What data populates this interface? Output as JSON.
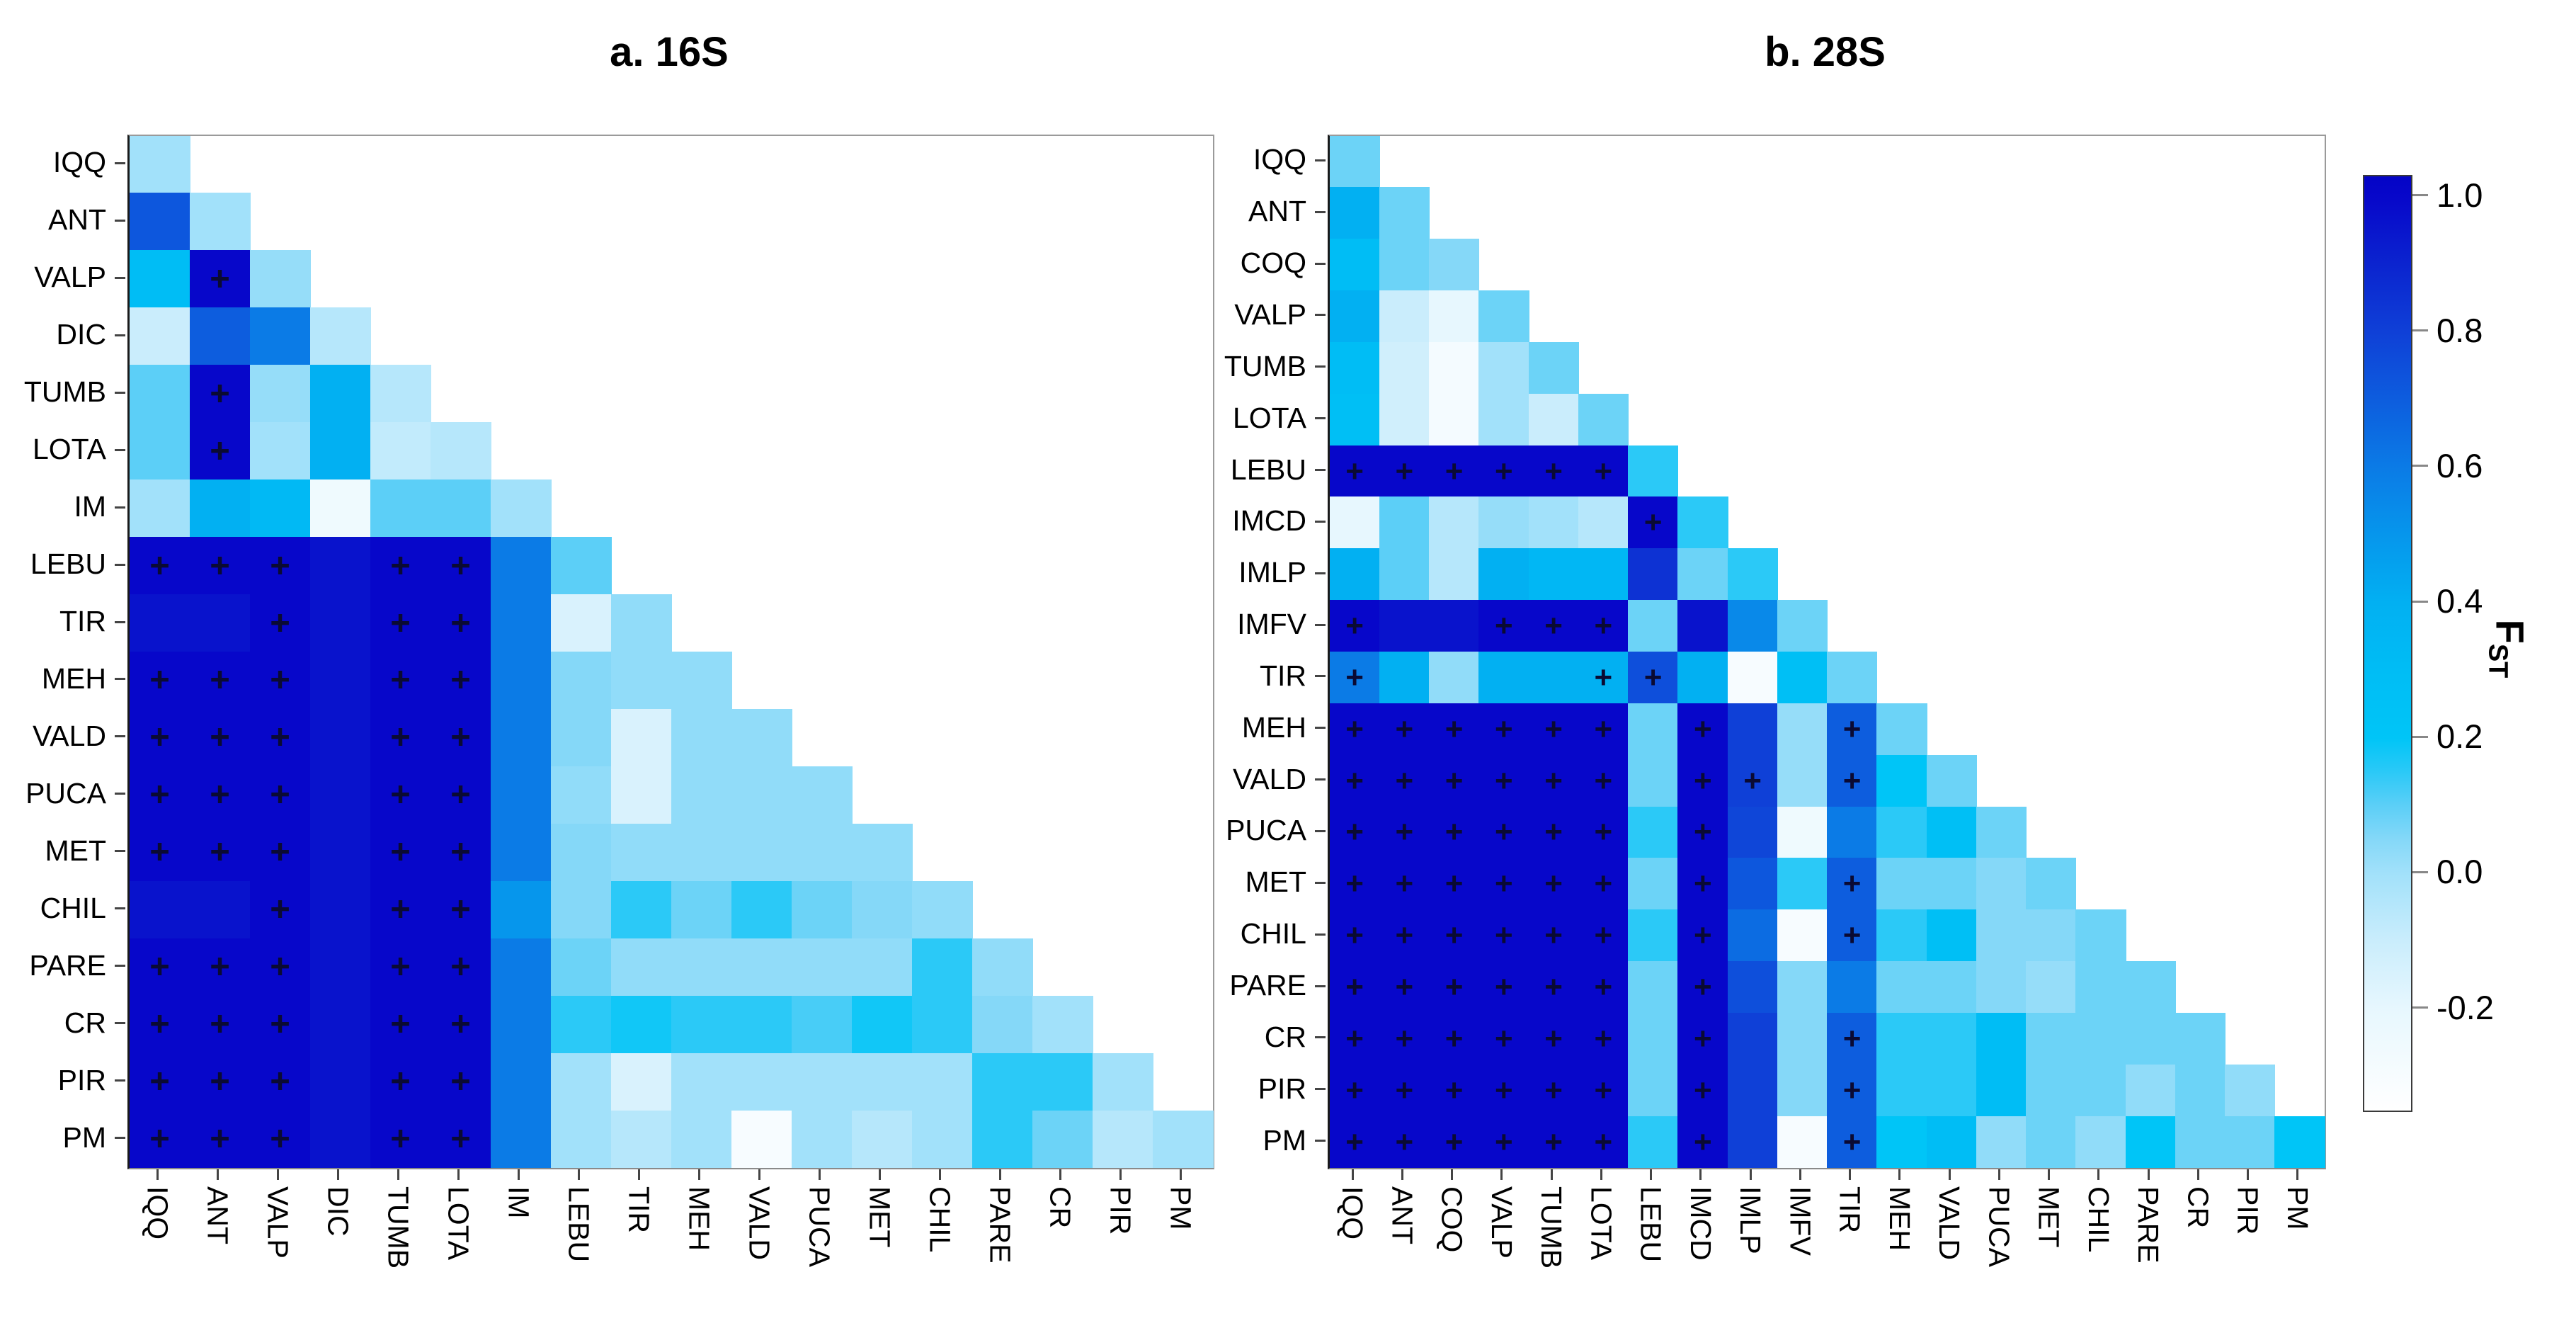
{
  "titles": {
    "panel_a": "a. 16S",
    "panel_b": "b. 28S"
  },
  "colorbar": {
    "label_main": "F",
    "label_sub": "ST",
    "ticks": [
      {
        "label": "1.0",
        "value": 1.0
      },
      {
        "label": "0.8",
        "value": 0.8
      },
      {
        "label": "0.6",
        "value": 0.6
      },
      {
        "label": "0.4",
        "value": 0.4
      },
      {
        "label": "0.2",
        "value": 0.2
      },
      {
        "label": "0.0",
        "value": 0.0
      },
      {
        "label": "-0.2",
        "value": -0.2
      }
    ],
    "range_top": 1.03,
    "range_bottom": -0.35,
    "gradient_stops": [
      [
        1.03,
        "#0404C6"
      ],
      [
        1.0,
        "#0707CA"
      ],
      [
        0.9,
        "#0B24CF"
      ],
      [
        0.8,
        "#0F40D7"
      ],
      [
        0.7,
        "#0D5DDE"
      ],
      [
        0.6,
        "#0B7BE6"
      ],
      [
        0.5,
        "#0696EC"
      ],
      [
        0.4,
        "#02B0F2"
      ],
      [
        0.3,
        "#00BDF5"
      ],
      [
        0.2,
        "#00C5F7"
      ],
      [
        0.15,
        "#2BC9F7"
      ],
      [
        0.1,
        "#5CCFF7"
      ],
      [
        0.05,
        "#85D8F8"
      ],
      [
        0.0,
        "#A2E1FA"
      ],
      [
        -0.1,
        "#CAEDFC"
      ],
      [
        -0.2,
        "#E7F7FE"
      ],
      [
        -0.35,
        "#FFFFFF"
      ]
    ]
  },
  "chart_data": [
    {
      "type": "heatmap",
      "title": "a. 16S",
      "gene": "16S",
      "note": "pairwise FST lower-triangular matrix; + marks significant values",
      "labels": [
        "IQQ",
        "ANT",
        "VALP",
        "DIC",
        "TUMB",
        "LOTA",
        "IM",
        "LEBU",
        "TIR",
        "MEH",
        "VALD",
        "PUCA",
        "MET",
        "CHIL",
        "PARE",
        "CR",
        "PIR",
        "PM"
      ],
      "matrix": [
        [
          0.0
        ],
        [
          0.72,
          0.0
        ],
        [
          0.3,
          1.0,
          0.02
        ],
        [
          -0.1,
          0.7,
          0.6,
          -0.05
        ],
        [
          0.1,
          1.0,
          0.02,
          0.4,
          -0.05
        ],
        [
          0.1,
          1.0,
          0.0,
          0.4,
          -0.08,
          -0.05
        ],
        [
          0.0,
          0.4,
          0.33,
          -0.25,
          0.1,
          0.1,
          0.0
        ],
        [
          1.0,
          1.0,
          1.0,
          0.96,
          1.0,
          1.0,
          0.6,
          0.1
        ],
        [
          0.96,
          0.96,
          1.0,
          0.96,
          1.0,
          1.0,
          0.6,
          -0.15,
          0.03
        ],
        [
          1.0,
          1.0,
          1.0,
          0.96,
          1.0,
          1.0,
          0.6,
          0.05,
          0.03,
          0.03
        ],
        [
          1.0,
          1.0,
          1.0,
          0.96,
          1.0,
          1.0,
          0.6,
          0.05,
          -0.15,
          0.03,
          0.03
        ],
        [
          1.0,
          1.0,
          1.0,
          0.96,
          1.0,
          1.0,
          0.6,
          0.03,
          -0.15,
          0.03,
          0.03,
          0.03
        ],
        [
          1.0,
          1.0,
          1.0,
          0.96,
          1.0,
          1.0,
          0.6,
          0.05,
          0.03,
          0.03,
          0.03,
          0.03,
          0.03
        ],
        [
          0.96,
          0.96,
          1.0,
          0.96,
          1.0,
          1.0,
          0.5,
          0.05,
          0.15,
          0.08,
          0.15,
          0.08,
          0.05,
          0.03
        ],
        [
          1.0,
          1.0,
          1.0,
          0.96,
          1.0,
          1.0,
          0.6,
          0.08,
          0.03,
          0.03,
          0.03,
          0.03,
          0.03,
          0.15,
          0.03
        ],
        [
          1.0,
          1.0,
          1.0,
          0.96,
          1.0,
          1.0,
          0.6,
          0.15,
          0.18,
          0.15,
          0.15,
          0.12,
          0.18,
          0.15,
          0.05,
          0.0
        ],
        [
          1.0,
          1.0,
          1.0,
          0.96,
          1.0,
          1.0,
          0.6,
          0.0,
          -0.15,
          0.0,
          0.0,
          0.0,
          0.0,
          0.0,
          0.15,
          0.15,
          0.0
        ],
        [
          1.0,
          1.0,
          1.0,
          0.96,
          1.0,
          1.0,
          0.6,
          0.0,
          -0.05,
          0.0,
          -0.3,
          0.0,
          -0.05,
          0.0,
          0.15,
          0.08,
          -0.05,
          0.0
        ]
      ],
      "significant_plus": [
        [
          "VALP",
          "ANT"
        ],
        [
          "TUMB",
          "ANT"
        ],
        [
          "LOTA",
          "ANT"
        ],
        [
          "LEBU",
          "IQQ"
        ],
        [
          "LEBU",
          "ANT"
        ],
        [
          "LEBU",
          "VALP"
        ],
        [
          "LEBU",
          "TUMB"
        ],
        [
          "LEBU",
          "LOTA"
        ],
        [
          "TIR",
          "VALP"
        ],
        [
          "TIR",
          "TUMB"
        ],
        [
          "TIR",
          "LOTA"
        ],
        [
          "MEH",
          "IQQ"
        ],
        [
          "MEH",
          "ANT"
        ],
        [
          "MEH",
          "VALP"
        ],
        [
          "MEH",
          "TUMB"
        ],
        [
          "MEH",
          "LOTA"
        ],
        [
          "VALD",
          "IQQ"
        ],
        [
          "VALD",
          "ANT"
        ],
        [
          "VALD",
          "VALP"
        ],
        [
          "VALD",
          "TUMB"
        ],
        [
          "VALD",
          "LOTA"
        ],
        [
          "PUCA",
          "IQQ"
        ],
        [
          "PUCA",
          "ANT"
        ],
        [
          "PUCA",
          "VALP"
        ],
        [
          "PUCA",
          "TUMB"
        ],
        [
          "PUCA",
          "LOTA"
        ],
        [
          "MET",
          "IQQ"
        ],
        [
          "MET",
          "ANT"
        ],
        [
          "MET",
          "VALP"
        ],
        [
          "MET",
          "TUMB"
        ],
        [
          "MET",
          "LOTA"
        ],
        [
          "CHIL",
          "VALP"
        ],
        [
          "CHIL",
          "TUMB"
        ],
        [
          "CHIL",
          "LOTA"
        ],
        [
          "PARE",
          "IQQ"
        ],
        [
          "PARE",
          "ANT"
        ],
        [
          "PARE",
          "VALP"
        ],
        [
          "PARE",
          "TUMB"
        ],
        [
          "PARE",
          "LOTA"
        ],
        [
          "CR",
          "IQQ"
        ],
        [
          "CR",
          "ANT"
        ],
        [
          "CR",
          "VALP"
        ],
        [
          "CR",
          "TUMB"
        ],
        [
          "CR",
          "LOTA"
        ],
        [
          "PIR",
          "IQQ"
        ],
        [
          "PIR",
          "ANT"
        ],
        [
          "PIR",
          "VALP"
        ],
        [
          "PIR",
          "TUMB"
        ],
        [
          "PIR",
          "LOTA"
        ],
        [
          "PM",
          "IQQ"
        ],
        [
          "PM",
          "ANT"
        ],
        [
          "PM",
          "VALP"
        ],
        [
          "PM",
          "TUMB"
        ],
        [
          "PM",
          "LOTA"
        ]
      ]
    },
    {
      "type": "heatmap",
      "title": "b. 28S",
      "gene": "28S",
      "note": "pairwise FST lower-triangular matrix; + marks significant values",
      "labels": [
        "IQQ",
        "ANT",
        "COQ",
        "VALP",
        "TUMB",
        "LOTA",
        "LEBU",
        "IMCD",
        "IMLP",
        "IMFV",
        "TIR",
        "MEH",
        "VALD",
        "PUCA",
        "MET",
        "CHIL",
        "PARE",
        "CR",
        "PIR",
        "PM"
      ],
      "matrix": [
        [
          0.08
        ],
        [
          0.4,
          0.08
        ],
        [
          0.3,
          0.08,
          0.05
        ],
        [
          0.4,
          -0.1,
          -0.2,
          0.08
        ],
        [
          0.3,
          -0.12,
          -0.28,
          0.0,
          0.08
        ],
        [
          0.28,
          -0.12,
          -0.28,
          0.0,
          -0.1,
          0.08
        ],
        [
          1.0,
          1.0,
          1.0,
          1.0,
          1.0,
          1.0,
          0.15
        ],
        [
          -0.2,
          0.1,
          -0.05,
          0.02,
          0.0,
          -0.05,
          1.0,
          0.15
        ],
        [
          0.4,
          0.1,
          -0.05,
          0.4,
          0.35,
          0.35,
          0.85,
          0.08,
          0.15
        ],
        [
          1.0,
          0.96,
          0.96,
          1.0,
          1.0,
          1.0,
          0.08,
          0.96,
          0.55,
          0.08
        ],
        [
          0.6,
          0.4,
          0.03,
          0.4,
          0.4,
          0.4,
          0.75,
          0.4,
          -0.3,
          0.28,
          0.08
        ],
        [
          1.0,
          1.0,
          1.0,
          1.0,
          1.0,
          1.0,
          0.08,
          1.0,
          0.8,
          0.02,
          0.7,
          0.08
        ],
        [
          1.0,
          1.0,
          1.0,
          1.0,
          1.0,
          1.0,
          0.08,
          1.0,
          0.8,
          0.02,
          0.7,
          0.2,
          0.08
        ],
        [
          1.0,
          1.0,
          1.0,
          1.0,
          1.0,
          1.0,
          0.15,
          1.0,
          0.78,
          -0.25,
          0.6,
          0.15,
          0.28,
          0.08
        ],
        [
          1.0,
          1.0,
          1.0,
          1.0,
          1.0,
          1.0,
          0.08,
          1.0,
          0.72,
          0.15,
          0.7,
          0.08,
          0.08,
          0.05,
          0.08
        ],
        [
          1.0,
          1.0,
          1.0,
          1.0,
          1.0,
          1.0,
          0.15,
          1.0,
          0.65,
          -0.3,
          0.7,
          0.15,
          0.28,
          0.05,
          0.05,
          0.08
        ],
        [
          1.0,
          1.0,
          1.0,
          1.0,
          1.0,
          1.0,
          0.08,
          1.0,
          0.75,
          0.05,
          0.6,
          0.08,
          0.08,
          0.05,
          0.02,
          0.08,
          0.08
        ],
        [
          1.0,
          1.0,
          1.0,
          1.0,
          1.0,
          1.0,
          0.08,
          1.0,
          0.8,
          0.05,
          0.7,
          0.15,
          0.15,
          0.3,
          0.08,
          0.08,
          0.08,
          0.08
        ],
        [
          1.0,
          1.0,
          1.0,
          1.0,
          1.0,
          1.0,
          0.08,
          1.0,
          0.8,
          0.05,
          0.7,
          0.15,
          0.15,
          0.3,
          0.08,
          0.08,
          0.03,
          0.08,
          0.03
        ],
        [
          1.0,
          1.0,
          1.0,
          1.0,
          1.0,
          1.0,
          0.15,
          1.0,
          0.8,
          -0.3,
          0.7,
          0.2,
          0.3,
          0.03,
          0.08,
          0.03,
          0.2,
          0.08,
          0.08,
          0.2
        ]
      ],
      "significant_plus": [
        [
          "LEBU",
          "IQQ"
        ],
        [
          "LEBU",
          "ANT"
        ],
        [
          "LEBU",
          "COQ"
        ],
        [
          "LEBU",
          "VALP"
        ],
        [
          "LEBU",
          "TUMB"
        ],
        [
          "LEBU",
          "LOTA"
        ],
        [
          "IMCD",
          "LEBU"
        ],
        [
          "IMFV",
          "IQQ"
        ],
        [
          "IMFV",
          "VALP"
        ],
        [
          "IMFV",
          "TUMB"
        ],
        [
          "IMFV",
          "LOTA"
        ],
        [
          "TIR",
          "IQQ"
        ],
        [
          "TIR",
          "LOTA"
        ],
        [
          "TIR",
          "LEBU"
        ],
        [
          "MEH",
          "IQQ"
        ],
        [
          "MEH",
          "ANT"
        ],
        [
          "MEH",
          "COQ"
        ],
        [
          "MEH",
          "VALP"
        ],
        [
          "MEH",
          "TUMB"
        ],
        [
          "MEH",
          "LOTA"
        ],
        [
          "MEH",
          "IMCD"
        ],
        [
          "MEH",
          "TIR"
        ],
        [
          "VALD",
          "IQQ"
        ],
        [
          "VALD",
          "ANT"
        ],
        [
          "VALD",
          "COQ"
        ],
        [
          "VALD",
          "VALP"
        ],
        [
          "VALD",
          "TUMB"
        ],
        [
          "VALD",
          "LOTA"
        ],
        [
          "VALD",
          "IMCD"
        ],
        [
          "VALD",
          "IMLP"
        ],
        [
          "VALD",
          "TIR"
        ],
        [
          "PUCA",
          "IQQ"
        ],
        [
          "PUCA",
          "ANT"
        ],
        [
          "PUCA",
          "COQ"
        ],
        [
          "PUCA",
          "VALP"
        ],
        [
          "PUCA",
          "TUMB"
        ],
        [
          "PUCA",
          "LOTA"
        ],
        [
          "PUCA",
          "IMCD"
        ],
        [
          "MET",
          "IQQ"
        ],
        [
          "MET",
          "ANT"
        ],
        [
          "MET",
          "COQ"
        ],
        [
          "MET",
          "VALP"
        ],
        [
          "MET",
          "TUMB"
        ],
        [
          "MET",
          "LOTA"
        ],
        [
          "MET",
          "IMCD"
        ],
        [
          "MET",
          "TIR"
        ],
        [
          "CHIL",
          "IQQ"
        ],
        [
          "CHIL",
          "ANT"
        ],
        [
          "CHIL",
          "COQ"
        ],
        [
          "CHIL",
          "VALP"
        ],
        [
          "CHIL",
          "TUMB"
        ],
        [
          "CHIL",
          "LOTA"
        ],
        [
          "CHIL",
          "IMCD"
        ],
        [
          "CHIL",
          "TIR"
        ],
        [
          "PARE",
          "IQQ"
        ],
        [
          "PARE",
          "ANT"
        ],
        [
          "PARE",
          "COQ"
        ],
        [
          "PARE",
          "VALP"
        ],
        [
          "PARE",
          "TUMB"
        ],
        [
          "PARE",
          "LOTA"
        ],
        [
          "PARE",
          "IMCD"
        ],
        [
          "CR",
          "IQQ"
        ],
        [
          "CR",
          "ANT"
        ],
        [
          "CR",
          "COQ"
        ],
        [
          "CR",
          "VALP"
        ],
        [
          "CR",
          "TUMB"
        ],
        [
          "CR",
          "LOTA"
        ],
        [
          "CR",
          "IMCD"
        ],
        [
          "CR",
          "TIR"
        ],
        [
          "PIR",
          "IQQ"
        ],
        [
          "PIR",
          "ANT"
        ],
        [
          "PIR",
          "COQ"
        ],
        [
          "PIR",
          "VALP"
        ],
        [
          "PIR",
          "TUMB"
        ],
        [
          "PIR",
          "LOTA"
        ],
        [
          "PIR",
          "IMCD"
        ],
        [
          "PIR",
          "TIR"
        ],
        [
          "PM",
          "IQQ"
        ],
        [
          "PM",
          "ANT"
        ],
        [
          "PM",
          "COQ"
        ],
        [
          "PM",
          "VALP"
        ],
        [
          "PM",
          "TUMB"
        ],
        [
          "PM",
          "LOTA"
        ],
        [
          "PM",
          "IMCD"
        ],
        [
          "PM",
          "TIR"
        ]
      ]
    }
  ]
}
